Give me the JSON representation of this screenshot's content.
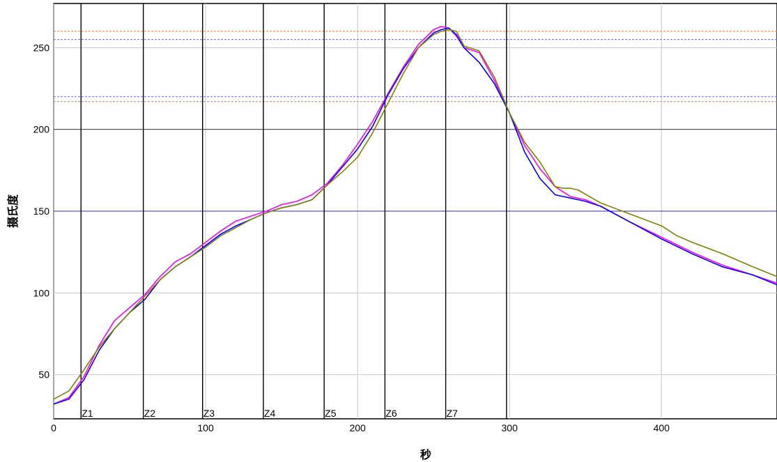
{
  "chart_data": {
    "type": "line",
    "title": "",
    "xlabel": "秒",
    "ylabel": "摄氏度",
    "xlim": [
      0,
      476
    ],
    "ylim": [
      23,
      277
    ],
    "x_ticks": [
      0,
      100,
      200,
      300,
      400
    ],
    "y_ticks": [
      50,
      100,
      150,
      200,
      250
    ],
    "grid": true,
    "zones": [
      {
        "label": "Z1",
        "x": 18
      },
      {
        "label": "Z2",
        "x": 59
      },
      {
        "label": "Z3",
        "x": 98
      },
      {
        "label": "Z4",
        "x": 138
      },
      {
        "label": "Z5",
        "x": 178
      },
      {
        "label": "Z6",
        "x": 218
      },
      {
        "label": "Z7",
        "x": 258
      },
      {
        "label": "",
        "x": 298
      }
    ],
    "reference_lines": [
      {
        "y": 260,
        "color": "#e07a3a",
        "style": "dashed"
      },
      {
        "y": 255,
        "color": "#6a6ad0",
        "style": "dashed"
      },
      {
        "y": 220,
        "color": "#6a6ad0",
        "style": "dashed"
      },
      {
        "y": 217,
        "color": "#e07a3a",
        "style": "dashed"
      },
      {
        "y": 200,
        "color": "#2f2fa0",
        "style": "solid"
      },
      {
        "y": 150,
        "color": "#2f2fa0",
        "style": "solid"
      }
    ],
    "series": [
      {
        "color": "#ff00ff",
        "x": [
          0,
          10,
          20,
          30,
          40,
          50,
          60,
          70,
          80,
          90,
          100,
          110,
          120,
          130,
          140,
          150,
          160,
          170,
          180,
          190,
          200,
          210,
          220,
          230,
          240,
          250,
          255,
          260,
          265,
          270,
          280,
          290,
          300,
          310,
          320,
          330,
          340,
          350,
          360,
          380,
          400,
          420,
          440,
          460,
          476
        ],
        "y": [
          32,
          36,
          49,
          68,
          83,
          91,
          99,
          110,
          119,
          124,
          131,
          138,
          144,
          147,
          150,
          154,
          156,
          160,
          167,
          178,
          191,
          205,
          222,
          238,
          252,
          261,
          263,
          262,
          257,
          250,
          247,
          230,
          210,
          190,
          176,
          165,
          159,
          157,
          153,
          143,
          134,
          125,
          117,
          111,
          106
        ]
      },
      {
        "color": "#0000ff",
        "x": [
          0,
          10,
          20,
          30,
          40,
          50,
          60,
          70,
          80,
          90,
          100,
          110,
          120,
          130,
          140,
          150,
          160,
          170,
          180,
          190,
          200,
          210,
          220,
          230,
          240,
          250,
          255,
          260,
          265,
          270,
          280,
          290,
          300,
          310,
          320,
          330,
          340,
          350,
          360,
          380,
          400,
          420,
          440,
          460,
          476
        ],
        "y": [
          32,
          35,
          47,
          65,
          78,
          88,
          96,
          108,
          116,
          122,
          129,
          136,
          141,
          145,
          149,
          152,
          154,
          157,
          166,
          177,
          188,
          202,
          221,
          237,
          250,
          259,
          261,
          262,
          258,
          250,
          241,
          228,
          210,
          186,
          170,
          160,
          158,
          156,
          153,
          143,
          133,
          124,
          116,
          111,
          105
        ]
      },
      {
        "color": "#808000",
        "x": [
          0,
          10,
          20,
          30,
          40,
          50,
          60,
          70,
          80,
          90,
          100,
          110,
          120,
          130,
          140,
          150,
          160,
          170,
          180,
          190,
          200,
          210,
          220,
          230,
          240,
          250,
          255,
          260,
          265,
          270,
          280,
          290,
          300,
          310,
          320,
          330,
          335,
          340,
          345,
          360,
          380,
          400,
          410,
          420,
          440,
          460,
          476
        ],
        "y": [
          35,
          40,
          53,
          67,
          78,
          88,
          98,
          108,
          116,
          122,
          128,
          135,
          140,
          145,
          149,
          152,
          154,
          157,
          166,
          174,
          183,
          198,
          216,
          234,
          250,
          258,
          260,
          261,
          260,
          251,
          248,
          232,
          210,
          192,
          180,
          165,
          164,
          164,
          163,
          155,
          148,
          141,
          135,
          131,
          124,
          116,
          110
        ]
      }
    ]
  }
}
